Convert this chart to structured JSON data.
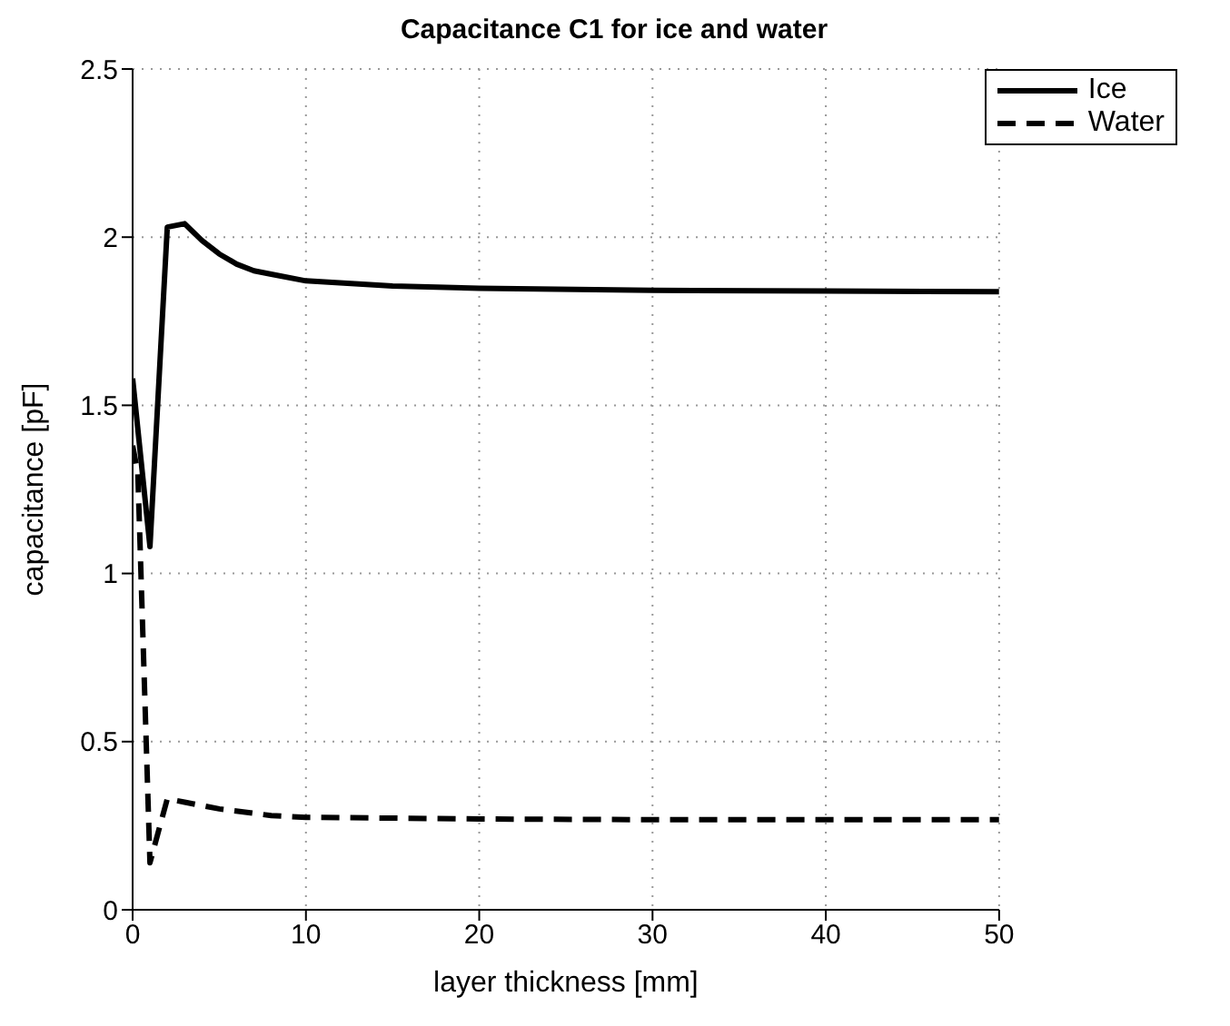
{
  "chart_data": {
    "type": "line",
    "title": "Capacitance C1 for ice and water",
    "xlabel": "layer thickness [mm]",
    "ylabel": "capacitance [pF]",
    "xlim": [
      0,
      50
    ],
    "xticks": [
      0,
      10,
      20,
      30,
      40,
      50
    ],
    "ylim": [
      0,
      2.5
    ],
    "yticks": [
      0,
      0.5,
      1,
      1.5,
      2,
      2.5
    ],
    "grid": true,
    "legend": "top right",
    "series": [
      {
        "name": "Ice",
        "color": "#000000",
        "line_style": "solid",
        "x": [
          0,
          1,
          2,
          3,
          4,
          5,
          6,
          7,
          8,
          10,
          15,
          20,
          30,
          40,
          50
        ],
        "values": [
          1.58,
          1.08,
          2.03,
          2.04,
          1.99,
          1.95,
          1.92,
          1.9,
          1.89,
          1.87,
          1.855,
          1.848,
          1.842,
          1.84,
          1.838
        ]
      },
      {
        "name": "Water",
        "color": "#000000",
        "line_style": "dashed",
        "x": [
          0,
          0.3,
          1,
          2,
          3,
          5,
          8,
          10,
          20,
          30,
          50
        ],
        "values": [
          1.38,
          1.3,
          0.14,
          0.33,
          0.32,
          0.3,
          0.28,
          0.275,
          0.27,
          0.268,
          0.268
        ]
      }
    ]
  }
}
